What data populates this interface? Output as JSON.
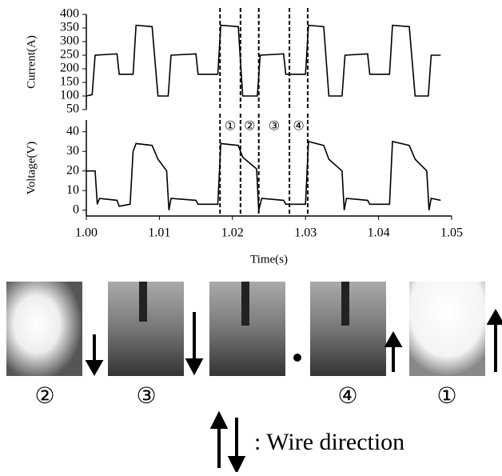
{
  "chart_data": [
    {
      "type": "line",
      "y_label": "Current(A)",
      "color": "#000000",
      "x": [
        1.0,
        1.0008,
        1.0012,
        1.0042,
        1.0045,
        1.0064,
        1.0068,
        1.009,
        1.0098,
        1.0112,
        1.0116,
        1.015,
        1.0153,
        1.018,
        1.0184,
        1.0208,
        1.0214,
        1.0234,
        1.0238,
        1.027,
        1.0273,
        1.03,
        1.0304,
        1.0325,
        1.0332,
        1.035,
        1.0354,
        1.0385,
        1.0388,
        1.0415,
        1.0419,
        1.0442,
        1.045,
        1.0468,
        1.0472,
        1.0485
      ],
      "values": [
        100,
        105,
        250,
        255,
        180,
        180,
        360,
        355,
        100,
        100,
        250,
        255,
        180,
        180,
        360,
        355,
        100,
        100,
        250,
        255,
        180,
        180,
        360,
        355,
        100,
        100,
        250,
        255,
        180,
        180,
        360,
        355,
        100,
        100,
        250,
        250
      ],
      "xlim": [
        1.0,
        1.05
      ],
      "ylim": [
        50,
        400
      ],
      "yticks": [
        50,
        100,
        150,
        200,
        250,
        300,
        350,
        400
      ],
      "vertical_lines": [
        1.0183,
        1.0211,
        1.0236,
        1.0278,
        1.0303
      ]
    },
    {
      "type": "line",
      "y_label": "Voltage(V)",
      "x_label": "Time(s)",
      "color": "#000000",
      "x": [
        1.0,
        1.0012,
        1.0015,
        1.0018,
        1.0042,
        1.0045,
        1.006,
        1.0064,
        1.0068,
        1.009,
        1.0098,
        1.011,
        1.0113,
        1.0116,
        1.015,
        1.0153,
        1.018,
        1.0184,
        1.0208,
        1.0214,
        1.0233,
        1.0236,
        1.024,
        1.027,
        1.0273,
        1.03,
        1.0304,
        1.0325,
        1.0332,
        1.035,
        1.0353,
        1.0356,
        1.0385,
        1.0388,
        1.0415,
        1.0419,
        1.0442,
        1.045,
        1.0466,
        1.0469,
        1.0472,
        1.0485
      ],
      "values": [
        20,
        20,
        3,
        6,
        5,
        2,
        3,
        30,
        34,
        33,
        26,
        20,
        0,
        6,
        5,
        3,
        3,
        34,
        33,
        27,
        21,
        0,
        6,
        5,
        3,
        3,
        35,
        33,
        26,
        20,
        0,
        6,
        5,
        3,
        3,
        35,
        33,
        26,
        20,
        0,
        6,
        5
      ],
      "xlim": [
        1.0,
        1.05
      ],
      "ylim": [
        -3,
        46
      ],
      "yticks": [
        0,
        10,
        20,
        30,
        40
      ],
      "xticks": [
        {
          "value": 1.0,
          "label": "1.00"
        },
        1.01,
        1.02,
        1.03,
        1.04,
        1.05
      ],
      "vertical_lines": [
        1.0183,
        1.0211,
        1.0236,
        1.0278,
        1.0303
      ],
      "phase_labels": [
        "①",
        "②",
        "③",
        "④"
      ]
    }
  ],
  "photos": {
    "labels": [
      "②",
      "③",
      "④",
      "①"
    ]
  },
  "legend": ": Wire direction"
}
